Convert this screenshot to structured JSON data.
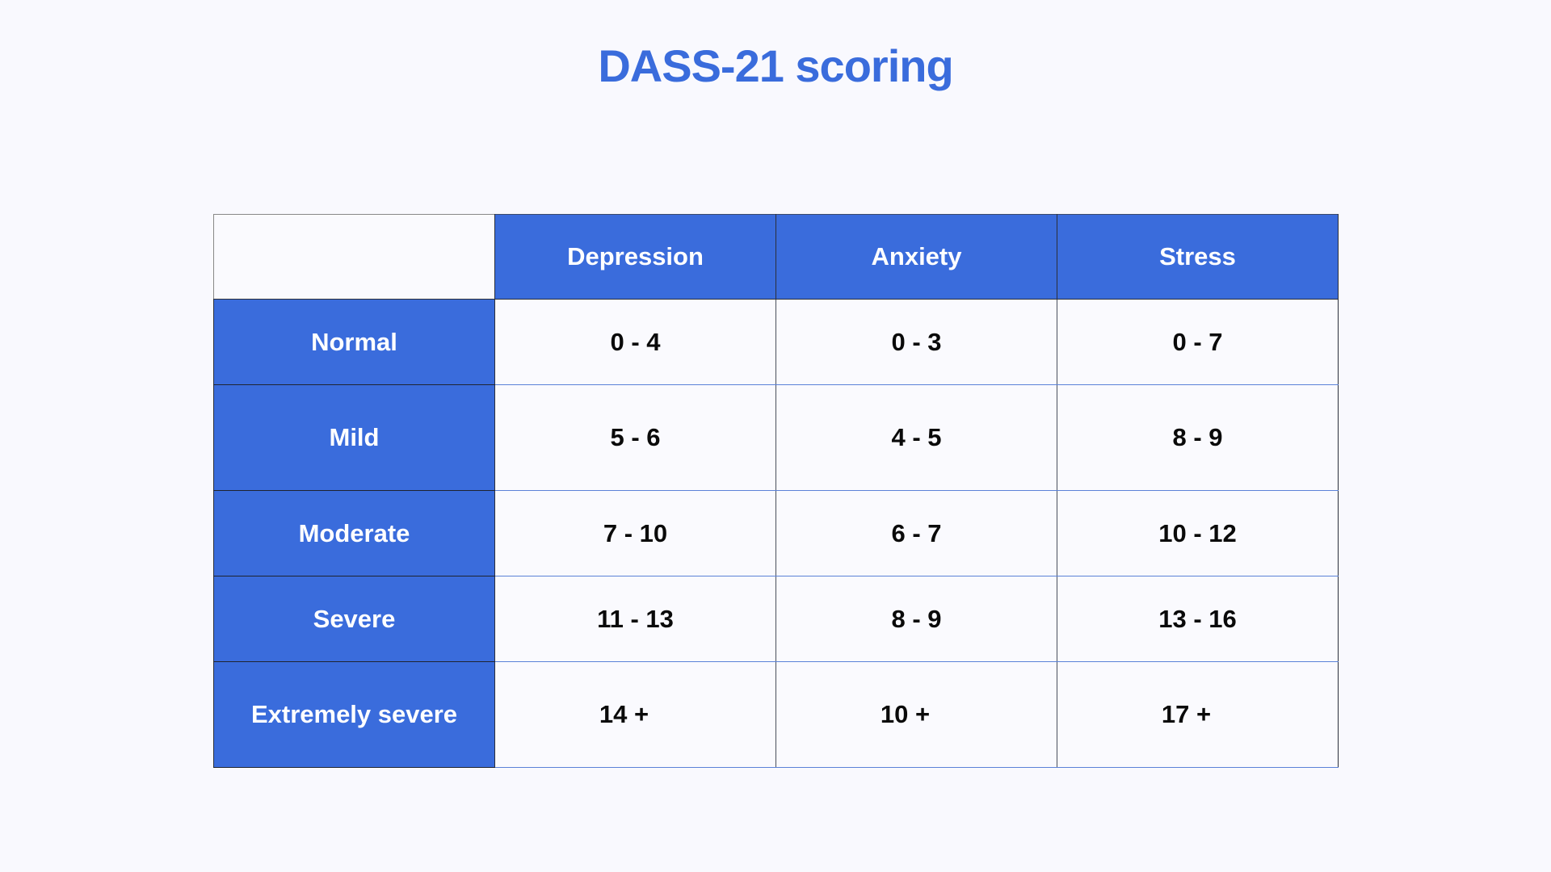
{
  "title": "DASS-21 scoring",
  "colors": {
    "accent": "#3a6cdc",
    "background": "#f9f9fe",
    "cell_text": "#0a0a0a",
    "header_text": "#ffffff",
    "row_divider": "#5b82d8"
  },
  "table": {
    "corner_label": "",
    "columns": [
      "Depression",
      "Anxiety",
      "Stress"
    ],
    "rows": [
      {
        "label": "Normal",
        "values": [
          "0 - 4",
          "0 - 3",
          "0 - 7"
        ]
      },
      {
        "label": "Mild",
        "values": [
          "5 - 6",
          "4 - 5",
          "8 - 9"
        ]
      },
      {
        "label": "Moderate",
        "values": [
          "7 - 10",
          "6 - 7",
          "10 - 12"
        ]
      },
      {
        "label": "Severe",
        "values": [
          "11 - 13",
          "8 - 9",
          "13 - 16"
        ]
      },
      {
        "label": "Extremely severe",
        "values": [
          "14 +",
          "10 +",
          "17 +"
        ]
      }
    ]
  }
}
